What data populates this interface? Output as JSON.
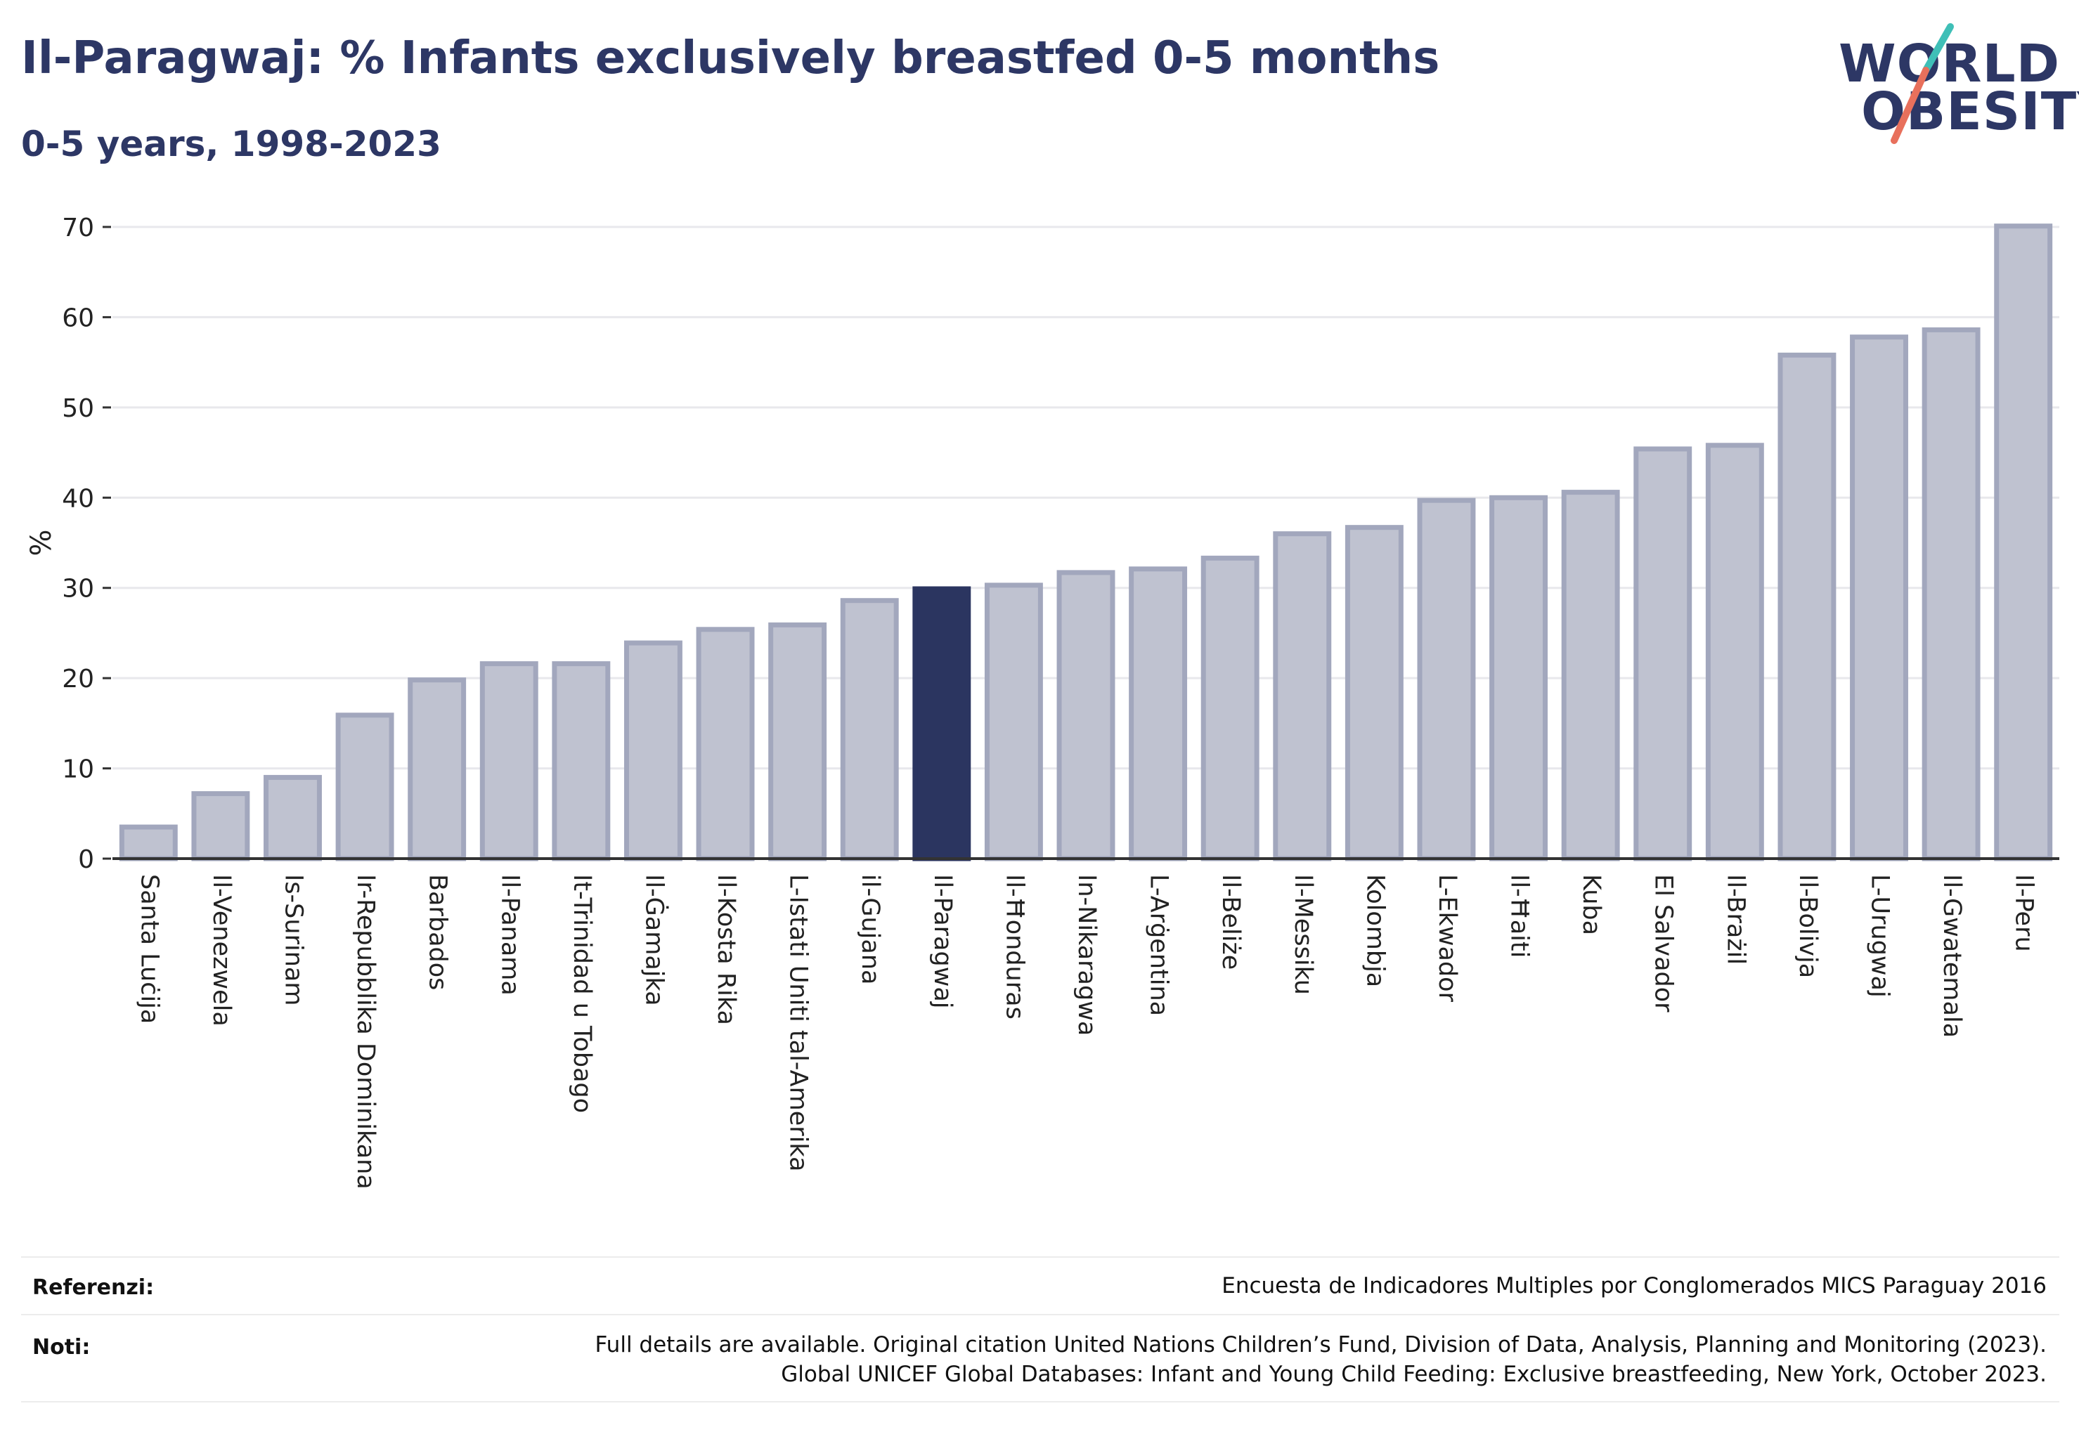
{
  "title": "Il-Paragwaj: % Infants exclusively breastfed 0-5 months",
  "subtitle": "0-5 years, 1998-2023",
  "logo": {
    "line1": "WORLD",
    "line2": "OBESITY"
  },
  "colors": {
    "bar": "#bfc2d0",
    "bar_edge": "#a2a7bd",
    "highlight": "#2b3560",
    "axis": "#333333",
    "grid": "#e8e8ec"
  },
  "chart_data": {
    "type": "bar",
    "title": "Il-Paragwaj: % Infants exclusively breastfed 0-5 months",
    "subtitle": "0-5 years, 1998-2023",
    "ylabel": "%",
    "xlabel": "",
    "ylim": [
      0,
      70
    ],
    "yticks": [
      0,
      10,
      20,
      30,
      40,
      50,
      60,
      70
    ],
    "grid": true,
    "highlight": "Il-Paragwaj",
    "categories": [
      "Santa Luċija",
      "Il-Venezwela",
      "Is-Surinam",
      "Ir-Repubblika Dominikana",
      "Barbados",
      "Il-Panama",
      "It-Trinidad u Tobago",
      "Il-Ġamajka",
      "Il-Kosta Rika",
      "L-Istati Uniti tal-Amerika",
      "il-Gujana",
      "Il-Paragwaj",
      "Il-Ħonduras",
      "In-Nikaragwa",
      "L-Arġentina",
      "Il-Beliże",
      "Il-Messiku",
      "Kolombja",
      "L-Ekwador",
      "Il-Ħaiti",
      "Kuba",
      "El Salvador",
      "Il-Brażil",
      "Il-Bolivja",
      "L-Urugwaj",
      "Il-Gwatemala",
      "Il-Peru"
    ],
    "values": [
      3.5,
      7.2,
      9.0,
      15.9,
      19.8,
      21.6,
      21.6,
      23.9,
      25.4,
      25.9,
      28.6,
      29.9,
      30.3,
      31.7,
      32.1,
      33.3,
      36.0,
      36.7,
      39.7,
      40.0,
      40.6,
      45.4,
      45.8,
      55.8,
      57.8,
      58.6,
      70.1
    ]
  },
  "footer": {
    "references_label": "Referenzi:",
    "references_text": "Encuesta de Indicadores Multiples por Conglomerados MICS Paraguay 2016",
    "notes_label": "Noti:",
    "notes_line1": "Full details are available. Original citation United Nations Children’s Fund, Division of Data, Analysis, Planning and Monitoring (2023).",
    "notes_line2": "Global UNICEF Global Databases: Infant and Young Child Feeding: Exclusive breastfeeding, New York, October 2023."
  }
}
